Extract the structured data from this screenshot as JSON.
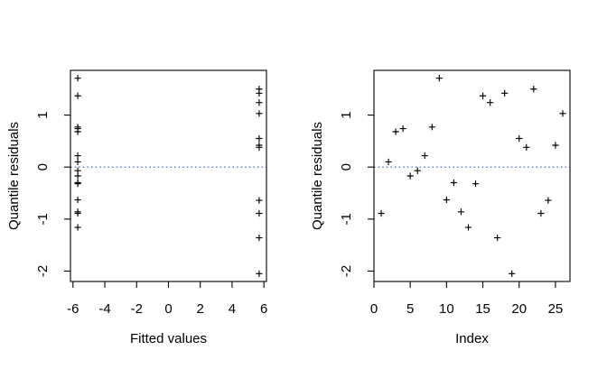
{
  "page": {
    "background": "#ffffff",
    "description": "Two-panel R diagnostic figure of quantile residuals"
  },
  "style": {
    "axis_color": "#000000",
    "text_color": "#000000",
    "marker_color": "#000000",
    "ref_line_color": "#3b55d4"
  },
  "chart_data": [
    {
      "type": "scatter",
      "name": "residuals-vs-fitted",
      "title": "",
      "xlabel": "Fitted values",
      "ylabel": "Quantile residuals",
      "marker": "plus",
      "grid": false,
      "legend": null,
      "xlim": [
        -6.16,
        6.16
      ],
      "ylim": [
        -2.2,
        1.86
      ],
      "xticks": [
        -6,
        -4,
        -2,
        0,
        2,
        4,
        6
      ],
      "yticks": [
        -2,
        -1,
        0,
        1
      ],
      "ref_line": {
        "y": 0,
        "style": "dotted"
      },
      "series": [
        {
          "name": "quantile-residuals",
          "points": [
            {
              "x": -5.7,
              "y": 1.71
            },
            {
              "x": -5.7,
              "y": 1.37
            },
            {
              "x": -5.7,
              "y": 0.77
            },
            {
              "x": -5.7,
              "y": 0.74
            },
            {
              "x": -5.7,
              "y": 0.68
            },
            {
              "x": -5.7,
              "y": 0.22
            },
            {
              "x": -5.7,
              "y": 0.1
            },
            {
              "x": -5.7,
              "y": -0.07
            },
            {
              "x": -5.7,
              "y": -0.17
            },
            {
              "x": -5.7,
              "y": -0.3
            },
            {
              "x": -5.7,
              "y": -0.32
            },
            {
              "x": -5.7,
              "y": -0.63
            },
            {
              "x": -5.7,
              "y": -0.86
            },
            {
              "x": -5.7,
              "y": -0.89
            },
            {
              "x": -5.7,
              "y": -1.16
            },
            {
              "x": 5.7,
              "y": 1.5
            },
            {
              "x": 5.7,
              "y": 1.42
            },
            {
              "x": 5.7,
              "y": 1.24
            },
            {
              "x": 5.7,
              "y": 1.03
            },
            {
              "x": 5.7,
              "y": 0.55
            },
            {
              "x": 5.7,
              "y": 0.42
            },
            {
              "x": 5.7,
              "y": 0.38
            },
            {
              "x": 5.7,
              "y": -0.64
            },
            {
              "x": 5.7,
              "y": -0.89
            },
            {
              "x": 5.7,
              "y": -1.36
            },
            {
              "x": 5.7,
              "y": -2.05
            }
          ]
        }
      ]
    },
    {
      "type": "scatter",
      "name": "residuals-vs-index",
      "title": "",
      "xlabel": "Index",
      "ylabel": "Quantile residuals",
      "marker": "plus",
      "grid": false,
      "legend": null,
      "xlim": [
        0,
        27
      ],
      "ylim": [
        -2.2,
        1.86
      ],
      "xticks": [
        0,
        5,
        10,
        15,
        20,
        25
      ],
      "yticks": [
        -2,
        -1,
        0,
        1
      ],
      "ref_line": {
        "y": 0,
        "style": "dotted"
      },
      "series": [
        {
          "name": "quantile-residuals",
          "points": [
            {
              "x": 1,
              "y": -0.89
            },
            {
              "x": 2,
              "y": 0.1
            },
            {
              "x": 3,
              "y": 0.68
            },
            {
              "x": 4,
              "y": 0.74
            },
            {
              "x": 5,
              "y": -0.17
            },
            {
              "x": 6,
              "y": -0.07
            },
            {
              "x": 7,
              "y": 0.22
            },
            {
              "x": 8,
              "y": 0.77
            },
            {
              "x": 9,
              "y": 1.71
            },
            {
              "x": 10,
              "y": -0.63
            },
            {
              "x": 11,
              "y": -0.3
            },
            {
              "x": 12,
              "y": -0.86
            },
            {
              "x": 13,
              "y": -1.16
            },
            {
              "x": 14,
              "y": -0.32
            },
            {
              "x": 15,
              "y": 1.37
            },
            {
              "x": 16,
              "y": 1.24
            },
            {
              "x": 17,
              "y": -1.36
            },
            {
              "x": 18,
              "y": 1.42
            },
            {
              "x": 19,
              "y": -2.05
            },
            {
              "x": 20,
              "y": 0.55
            },
            {
              "x": 21,
              "y": 0.38
            },
            {
              "x": 22,
              "y": 1.5
            },
            {
              "x": 23,
              "y": -0.89
            },
            {
              "x": 24,
              "y": -0.64
            },
            {
              "x": 25,
              "y": 0.42
            },
            {
              "x": 26,
              "y": 1.03
            }
          ]
        }
      ]
    }
  ]
}
